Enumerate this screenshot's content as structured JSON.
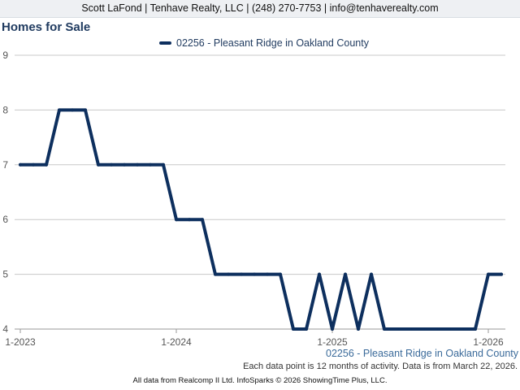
{
  "header": {
    "contact": "Scott LaFond | Tenhave Realty, LLC | (248) 270-7753 | info@tenhaverealty.com"
  },
  "chart_data": {
    "type": "line",
    "title": "Homes for Sale",
    "xlabel": "",
    "ylabel": "",
    "ylim": [
      4,
      9
    ],
    "y_ticks": [
      "4",
      "5",
      "6",
      "7",
      "8",
      "9"
    ],
    "x_ticks": [
      "1-2023",
      "1-2024",
      "1-2025",
      "1-2026"
    ],
    "x_range": [
      "2023-01",
      "2026-03"
    ],
    "grid": true,
    "legend_position": "top-center",
    "x": [
      "2023-01",
      "2023-02",
      "2023-03",
      "2023-04",
      "2023-05",
      "2023-06",
      "2023-07",
      "2023-08",
      "2023-09",
      "2023-10",
      "2023-11",
      "2023-12",
      "2024-01",
      "2024-02",
      "2024-03",
      "2024-04",
      "2024-05",
      "2024-06",
      "2024-07",
      "2024-08",
      "2024-09",
      "2024-10",
      "2024-11",
      "2024-12",
      "2025-01",
      "2025-02",
      "2025-03",
      "2025-04",
      "2025-05",
      "2025-06",
      "2025-07",
      "2025-08",
      "2025-09",
      "2025-10",
      "2025-11",
      "2025-12",
      "2026-01",
      "2026-02"
    ],
    "series": [
      {
        "name": "02256 - Pleasant Ridge in Oakland County",
        "color": "#0d2f5e",
        "values": [
          7,
          7,
          7,
          8,
          8,
          8,
          7,
          7,
          7,
          7,
          7,
          7,
          6,
          6,
          6,
          5,
          5,
          5,
          5,
          5,
          5,
          4,
          4,
          5,
          4,
          5,
          4,
          5,
          4,
          4,
          4,
          4,
          4,
          4,
          4,
          4,
          5,
          5
        ]
      }
    ],
    "area_label": "02256 - Pleasant Ridge in Oakland County",
    "footnote": "Each data point is 12 months of activity. Data is from March 22, 2026."
  },
  "footer": {
    "text": "All data from Realcomp II Ltd. InfoSparks © 2026 ShowingTime Plus, LLC."
  }
}
